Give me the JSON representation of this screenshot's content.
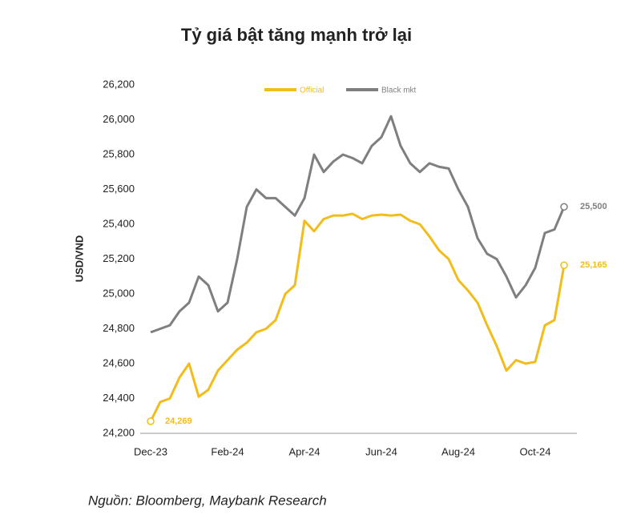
{
  "chart_data": {
    "type": "line",
    "title": "Tỷ giá bật tăng mạnh trở lại",
    "y_label": "USD/VND",
    "source": "Nguồn: Bloomberg, Maybank Research",
    "categories": [
      "Dec-23",
      null,
      null,
      null,
      null,
      null,
      null,
      null,
      "Feb-24",
      null,
      null,
      null,
      null,
      null,
      null,
      null,
      "Apr-24",
      null,
      null,
      null,
      null,
      null,
      null,
      null,
      "Jun-24",
      null,
      null,
      null,
      null,
      null,
      null,
      null,
      "Aug-24",
      null,
      null,
      null,
      null,
      null,
      null,
      null,
      "Oct-24",
      null,
      null,
      null
    ],
    "series": [
      {
        "name": "Official",
        "color": "#f2bc1b",
        "values": [
          24269,
          24380,
          24400,
          24520,
          24600,
          24410,
          24450,
          24560,
          24620,
          24680,
          24720,
          24780,
          24800,
          24850,
          25000,
          25050,
          25420,
          25360,
          25430,
          25450,
          25450,
          25460,
          25430,
          25450,
          25455,
          25450,
          25455,
          25420,
          25400,
          25330,
          25250,
          25200,
          25080,
          25020,
          24950,
          24820,
          24700,
          24560,
          24620,
          24600,
          24610,
          24820,
          24850,
          25165
        ],
        "value_labels": [
          "24,269",
          null,
          null,
          null,
          null,
          null,
          null,
          null,
          null,
          null,
          null,
          null,
          null,
          null,
          null,
          null,
          null,
          null,
          null,
          null,
          null,
          null,
          null,
          null,
          null,
          null,
          null,
          null,
          null,
          null,
          null,
          null,
          null,
          null,
          null,
          null,
          null,
          null,
          null,
          null,
          null,
          null,
          null,
          "25,165"
        ]
      },
      {
        "name": "Black mkt",
        "color": "#7f7f7f",
        "values": [
          24780,
          24800,
          24820,
          24900,
          24950,
          25100,
          25050,
          24900,
          24950,
          25200,
          25500,
          25600,
          25550,
          25550,
          25500,
          25450,
          25550,
          25800,
          25700,
          25760,
          25800,
          25780,
          25750,
          25850,
          25900,
          26020,
          25850,
          25750,
          25700,
          25750,
          25730,
          25720,
          25600,
          25500,
          25320,
          25230,
          25200,
          25100,
          24980,
          25050,
          25150,
          25350,
          25370,
          25500
        ],
        "value_labels": [
          null,
          null,
          null,
          null,
          null,
          null,
          null,
          null,
          null,
          null,
          null,
          null,
          null,
          null,
          null,
          null,
          null,
          null,
          null,
          null,
          null,
          null,
          null,
          null,
          null,
          null,
          null,
          null,
          null,
          null,
          null,
          null,
          null,
          null,
          null,
          null,
          null,
          null,
          null,
          null,
          null,
          null,
          null,
          "25,500"
        ]
      }
    ],
    "ylim": [
      24200,
      26200
    ],
    "yticks": [
      {
        "value": 24200,
        "label": "24,200"
      },
      {
        "value": 24400,
        "label": "24,400"
      },
      {
        "value": 24600,
        "label": "24,600"
      },
      {
        "value": 24800,
        "label": "24,800"
      },
      {
        "value": 25000,
        "label": "25,000"
      },
      {
        "value": 25200,
        "label": "25,200"
      },
      {
        "value": 25400,
        "label": "25,400"
      },
      {
        "value": 25600,
        "label": "25,600"
      },
      {
        "value": 25800,
        "label": "25,800"
      },
      {
        "value": 26000,
        "label": "26,000"
      },
      {
        "value": 26200,
        "label": "26,200"
      }
    ],
    "grid": false
  }
}
